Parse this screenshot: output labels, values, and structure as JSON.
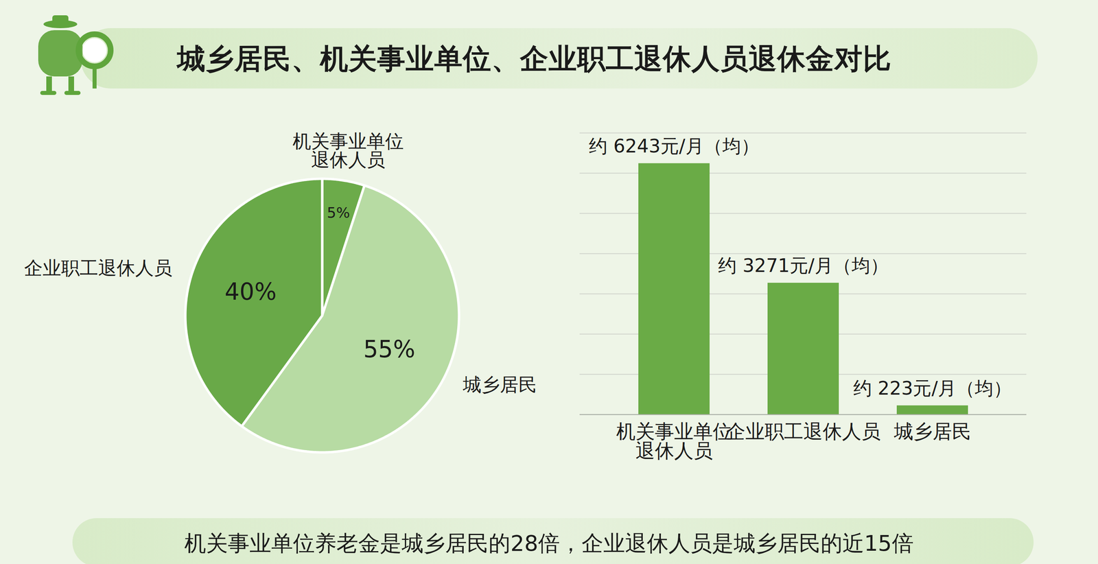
{
  "title": "城乡居民、机关事业单位、企业职工退休人员退休金对比",
  "caption": "机关事业单位养老金是城乡居民的28倍，企业退休人员是城乡居民的近15倍",
  "chart_data": [
    {
      "type": "pie",
      "categories": [
        "机关事业单位\n退休人员",
        "城乡居民",
        "企业职工退休人员"
      ],
      "values": [
        5,
        55,
        40
      ],
      "value_labels": [
        "5%",
        "55%",
        "40%"
      ],
      "colors": [
        "#6cab4a",
        "#b7dba3",
        "#69a948"
      ],
      "data_labels": true
    },
    {
      "type": "bar",
      "categories": [
        "机关事业单位\n退休人员",
        "企业职工退休人员",
        "城乡居民"
      ],
      "values": [
        6243,
        3271,
        223
      ],
      "value_labels": [
        "约 6243元/月（均）",
        "约 3271元/月（均）",
        "约 223元/月（均）"
      ],
      "color": "#6aab46",
      "ylim": [
        0,
        7000
      ],
      "yticks": [
        0,
        1000,
        2000,
        3000,
        4000,
        5000,
        6000,
        7000
      ],
      "grid": true,
      "tick_labels": "x",
      "data_labels": true
    }
  ]
}
